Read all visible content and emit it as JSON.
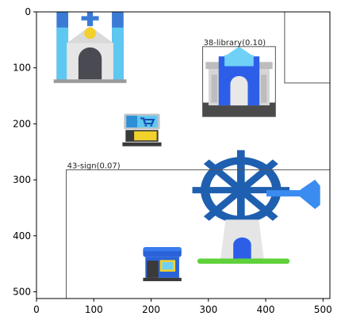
{
  "chart_data": {
    "type": "scatter",
    "title": "",
    "xlabel": "",
    "ylabel": "",
    "xlim": [
      0,
      512
    ],
    "ylim": [
      512,
      0
    ],
    "y_inverted": true,
    "grid": false,
    "xticks": [
      0,
      100,
      200,
      300,
      400,
      500
    ],
    "yticks": [
      0,
      100,
      200,
      300,
      400,
      500
    ],
    "icons": [
      {
        "name": "church-icon",
        "x0": 30,
        "y0": 0,
        "x1": 157,
        "y1": 127
      },
      {
        "name": "library-building-icon",
        "x0": 290,
        "y0": 62,
        "x1": 417,
        "y1": 187
      },
      {
        "name": "shopping-cart-terminal-icon",
        "x0": 150,
        "y0": 182,
        "x1": 218,
        "y1": 240
      },
      {
        "name": "windmill-icon",
        "x0": 272,
        "y0": 262,
        "x1": 495,
        "y1": 450
      },
      {
        "name": "shop-icon",
        "x0": 186,
        "y0": 420,
        "x1": 253,
        "y1": 481
      }
    ],
    "detections": [
      {
        "label": "38-library(0.10)",
        "x0": 290,
        "y0": 62,
        "x1": 417,
        "y1": 187
      },
      {
        "label": "43-sign(0.07)",
        "x0": 52,
        "y0": 282,
        "x1": 512,
        "y1": 512
      },
      {
        "label": "",
        "x0": 433,
        "y0": 0,
        "x1": 512,
        "y1": 127
      }
    ],
    "colors": {
      "box": "#555555",
      "axis": "#000000"
    }
  }
}
